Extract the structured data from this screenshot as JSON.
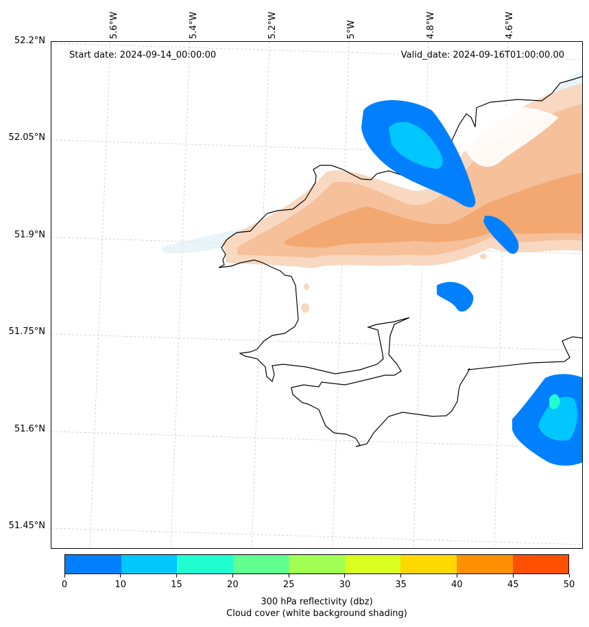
{
  "map": {
    "start_date": "Start date: 2024-09-14_00:00:00",
    "valid_date": "Valid_date: 2024-09-16T01:00:00.00",
    "lon_labels": [
      "5.6°W",
      "5.4°W",
      "5.2°W",
      "5°W",
      "4.8°W",
      "4.6°W"
    ],
    "lat_labels": [
      "52.2°N",
      "52.05°N",
      "51.9°N",
      "51.75°N",
      "51.6°N",
      "51.45°N"
    ]
  },
  "colorbar": {
    "ticks": [
      "0",
      "10",
      "15",
      "20",
      "25",
      "30",
      "35",
      "40",
      "45",
      "50"
    ],
    "colors": [
      "#0080ff",
      "#00c8ff",
      "#20ffd0",
      "#60ff90",
      "#a0ff50",
      "#d8ff20",
      "#ffd800",
      "#ff9000",
      "#ff5000"
    ],
    "label_line1": "300 hPa reflectivity (dbz)",
    "label_line2": "Cloud cover (white background shading)"
  },
  "colors": {
    "cloud": "#f2a870",
    "cloud_light": "#f8d0b0",
    "refl_10": "#0080ff",
    "refl_15": "#00c8ff",
    "refl_20": "#20ffd0"
  }
}
